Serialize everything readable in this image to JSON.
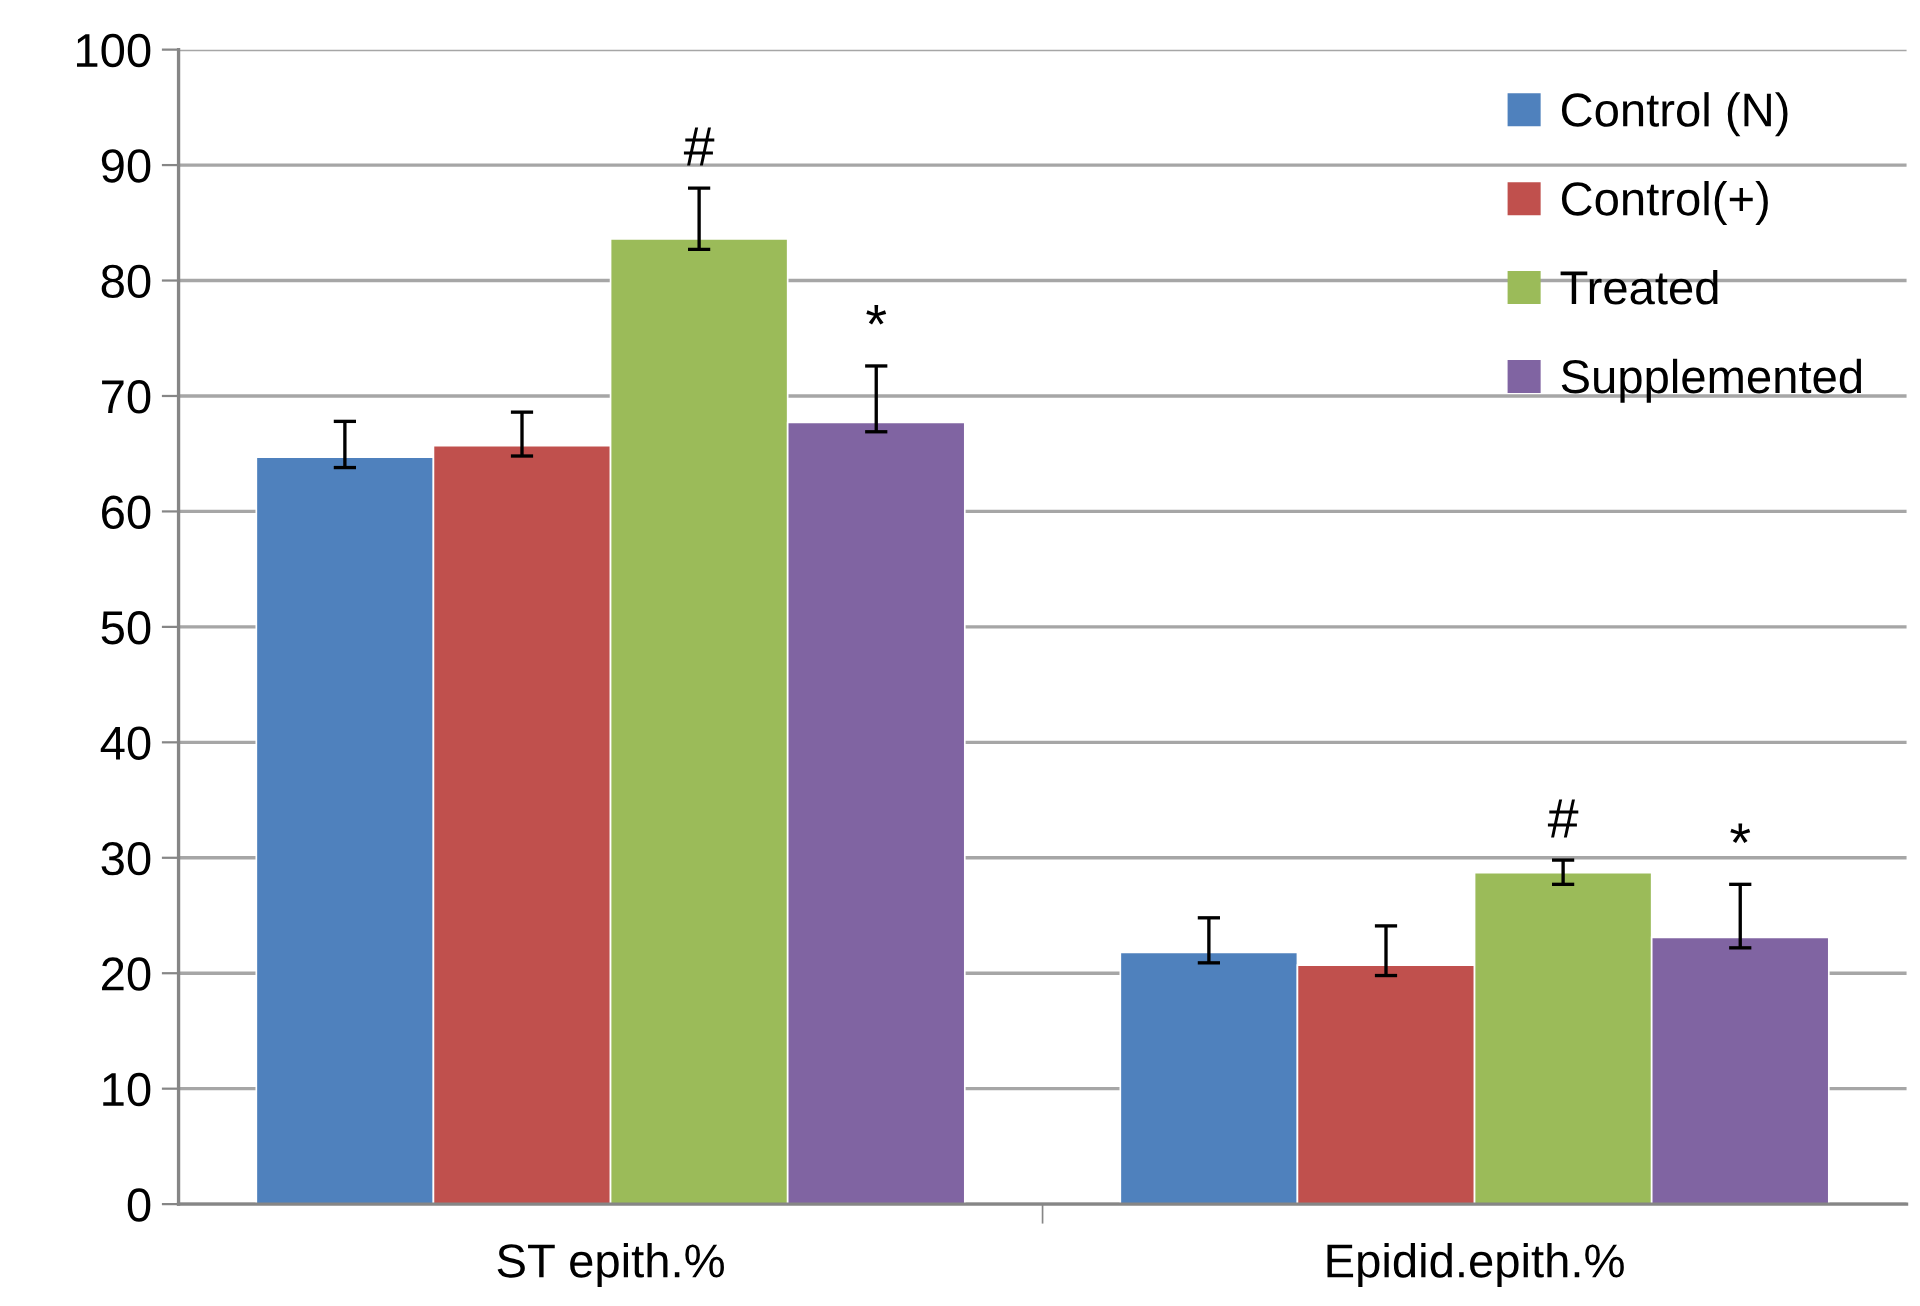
{
  "chart_data": {
    "type": "bar",
    "categories": [
      "ST epith.%",
      "Epidid.epith.%"
    ],
    "series": [
      {
        "name": "Control (N)",
        "color": "#4f81bd",
        "values": [
          64.7,
          21.8
        ],
        "errors": [
          [
            63.8,
            67.8
          ],
          [
            20.9,
            24.8
          ]
        ]
      },
      {
        "name": "Control(+)",
        "color": "#c0504d",
        "values": [
          65.7,
          20.7
        ],
        "errors": [
          [
            64.8,
            68.6
          ],
          [
            19.8,
            24.1
          ]
        ]
      },
      {
        "name": "Treated",
        "color": "#9bbb59",
        "values": [
          83.6,
          28.7
        ],
        "errors": [
          [
            82.7,
            88.0
          ],
          [
            27.7,
            29.8
          ]
        ],
        "value_labels": [
          "#",
          "#"
        ]
      },
      {
        "name": "Supplemented",
        "color": "#8064a2",
        "values": [
          67.7,
          23.1
        ],
        "errors": [
          [
            66.9,
            72.6
          ],
          [
            22.2,
            27.7
          ]
        ],
        "value_labels": [
          "*",
          "*"
        ]
      }
    ],
    "ylim": [
      0,
      100
    ],
    "yticks": [
      0,
      10,
      20,
      30,
      40,
      50,
      60,
      70,
      80,
      90,
      100
    ],
    "grid": "y",
    "legend": "top right"
  }
}
